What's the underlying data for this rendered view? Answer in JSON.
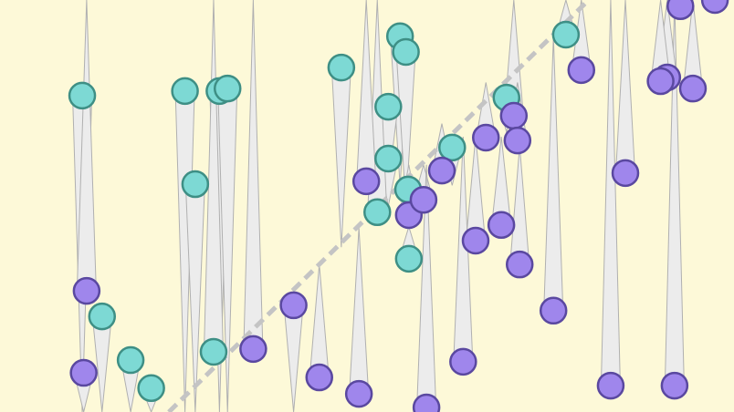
{
  "chart_data": {
    "type": "scatter",
    "title": "",
    "xlabel": "",
    "ylabel": "",
    "xlim": [
      0,
      100
    ],
    "ylim": [
      0,
      100
    ],
    "grid": false,
    "axes_visible": false,
    "background_color": "#fdf9d8",
    "reference_line": {
      "style": "dashed",
      "color": "#c4c4c4",
      "from": [
        23,
        0
      ],
      "to": [
        80.2,
        100
      ]
    },
    "tail_color": "#ececec",
    "series": [
      {
        "color": "#7dd9d4",
        "stroke": "#3e8f85",
        "points": [
          {
            "x": 11.2,
            "y": 76.8,
            "tail": 0
          },
          {
            "x": 25.2,
            "y": 77.9,
            "tail": 0
          },
          {
            "x": 26.6,
            "y": 55.3,
            "tail": 0
          },
          {
            "x": 29.9,
            "y": 77.9,
            "tail": 0
          },
          {
            "x": 31.0,
            "y": 78.5,
            "tail": 0
          },
          {
            "x": 46.5,
            "y": 83.6,
            "tail": 40
          },
          {
            "x": 54.5,
            "y": 91.2,
            "tail": 55
          },
          {
            "x": 55.3,
            "y": 87.4,
            "tail": 50
          },
          {
            "x": 52.9,
            "y": 74.1,
            "tail": 55
          },
          {
            "x": 52.9,
            "y": 61.5,
            "tail": 50
          },
          {
            "x": 55.6,
            "y": 54.0,
            "tail": 45
          },
          {
            "x": 51.4,
            "y": 48.5,
            "tail": 100
          },
          {
            "x": 55.7,
            "y": 37.2,
            "tail": 45
          },
          {
            "x": 61.6,
            "y": 64.2,
            "tail": 55
          },
          {
            "x": 69.0,
            "y": 76.3,
            "tail": 68
          },
          {
            "x": 77.1,
            "y": 91.6,
            "tail": 100
          },
          {
            "x": 13.9,
            "y": 23.2,
            "tail": 0
          },
          {
            "x": 17.8,
            "y": 12.6,
            "tail": 0
          },
          {
            "x": 20.6,
            "y": 5.8,
            "tail": 0
          },
          {
            "x": 29.1,
            "y": 14.6,
            "tail": 100
          }
        ]
      },
      {
        "color": "#9f86ec",
        "stroke": "#5a48a0",
        "points": [
          {
            "x": 11.8,
            "y": 29.4,
            "tail": 100
          },
          {
            "x": 11.4,
            "y": 9.5,
            "tail": 0
          },
          {
            "x": 34.5,
            "y": 15.3,
            "tail": 100
          },
          {
            "x": 40.0,
            "y": 25.9,
            "tail": 0
          },
          {
            "x": 43.5,
            "y": 8.4,
            "tail": 35.8
          },
          {
            "x": 48.9,
            "y": 4.4,
            "tail": 44.7
          },
          {
            "x": 49.9,
            "y": 56.0,
            "tail": 100
          },
          {
            "x": 55.7,
            "y": 47.8,
            "tail": 60
          },
          {
            "x": 57.7,
            "y": 51.5,
            "tail": 60
          },
          {
            "x": 58.1,
            "y": 1.1,
            "tail": 60
          },
          {
            "x": 60.2,
            "y": 58.6,
            "tail": 70
          },
          {
            "x": 63.1,
            "y": 12.2,
            "tail": 66.8
          },
          {
            "x": 64.8,
            "y": 41.6,
            "tail": 66.8
          },
          {
            "x": 66.2,
            "y": 66.6,
            "tail": 80
          },
          {
            "x": 68.3,
            "y": 45.4,
            "tail": 66.8
          },
          {
            "x": 70.0,
            "y": 71.9,
            "tail": 100
          },
          {
            "x": 70.5,
            "y": 65.9,
            "tail": 80
          },
          {
            "x": 70.8,
            "y": 35.8,
            "tail": 64.6
          },
          {
            "x": 75.4,
            "y": 24.6,
            "tail": 91
          },
          {
            "x": 79.2,
            "y": 83.0,
            "tail": 100
          },
          {
            "x": 85.2,
            "y": 58.0,
            "tail": 100
          },
          {
            "x": 83.2,
            "y": 6.4,
            "tail": 100
          },
          {
            "x": 91.9,
            "y": 6.4,
            "tail": 100
          },
          {
            "x": 92.7,
            "y": 98.5,
            "tail": 100
          },
          {
            "x": 90.9,
            "y": 81.2,
            "tail": 100
          },
          {
            "x": 90.0,
            "y": 80.3,
            "tail": 100
          },
          {
            "x": 94.4,
            "y": 78.5,
            "tail": 100
          },
          {
            "x": 97.4,
            "y": 100,
            "tail": 100
          }
        ]
      }
    ]
  }
}
